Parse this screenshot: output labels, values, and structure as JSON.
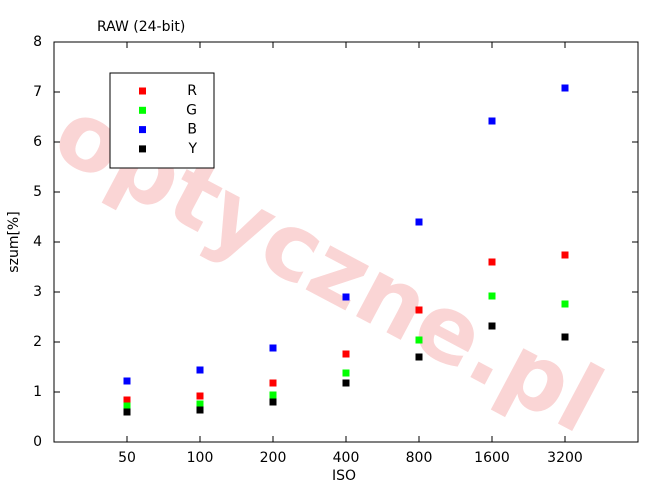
{
  "chart_data": {
    "type": "scatter",
    "title": "RAW (24-bit)",
    "watermark": "optyczne.pl",
    "x_label": "ISO",
    "y_label": "szum[%]",
    "categories": [
      "50",
      "100",
      "200",
      "400",
      "800",
      "1600",
      "3200"
    ],
    "series": [
      {
        "name": "R",
        "color": "#ff0000",
        "values": [
          0.84,
          0.92,
          1.18,
          1.76,
          2.64,
          3.6,
          3.74
        ]
      },
      {
        "name": "G",
        "color": "#00ff00",
        "values": [
          0.72,
          0.76,
          0.94,
          1.38,
          2.04,
          2.92,
          2.76
        ]
      },
      {
        "name": "B",
        "color": "#0000ff",
        "values": [
          1.22,
          1.44,
          1.88,
          2.9,
          4.4,
          6.42,
          7.08
        ]
      },
      {
        "name": "Y",
        "color": "#000000",
        "values": [
          0.6,
          0.64,
          0.8,
          1.18,
          1.7,
          2.32,
          2.1
        ]
      }
    ],
    "ylim": [
      0,
      8
    ],
    "yticks": [
      0,
      1,
      2,
      3,
      4,
      5,
      6,
      7,
      8
    ],
    "grid": false,
    "legend": "upper-left"
  }
}
